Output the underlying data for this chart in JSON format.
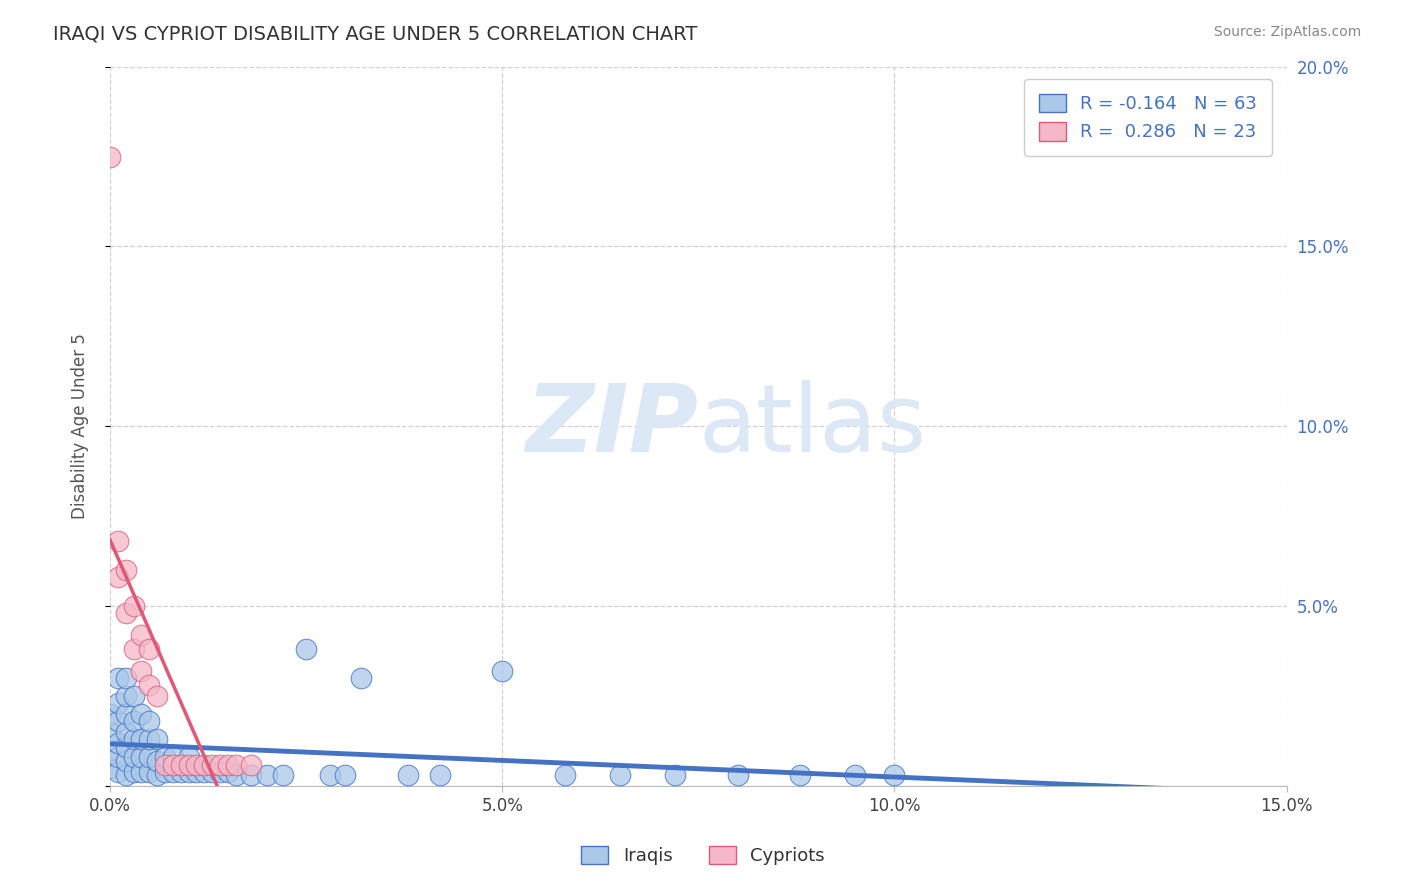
{
  "title": "IRAQI VS CYPRIOT DISABILITY AGE UNDER 5 CORRELATION CHART",
  "source": "Source: ZipAtlas.com",
  "ylabel": "Disability Age Under 5",
  "xlim": [
    0.0,
    0.15
  ],
  "ylim": [
    0.0,
    0.2
  ],
  "xtick_vals": [
    0.0,
    0.05,
    0.1,
    0.15
  ],
  "ytick_vals": [
    0.0,
    0.05,
    0.1,
    0.15,
    0.2
  ],
  "xtick_labels": [
    "0.0%",
    "5.0%",
    "10.0%",
    "15.0%"
  ],
  "ytick_labels_right": [
    "",
    "5.0%",
    "10.0%",
    "15.0%",
    "20.0%"
  ],
  "legend_iraqi": "R = -0.164   N = 63",
  "legend_cypriot": "R =  0.286   N = 23",
  "color_iraqi": "#aac8e8",
  "color_iraqi_line": "#4472c4",
  "color_cypriot": "#f4b8c8",
  "color_cypriot_line": "#e05878",
  "watermark_zip": "ZIP",
  "watermark_atlas": "atlas",
  "watermark_color": "#dce8f5",
  "background_color": "#ffffff",
  "grid_color": "#cccccc",
  "iraqi_x": [
    0.0,
    0.0,
    0.0,
    0.0,
    0.001,
    0.001,
    0.001,
    0.001,
    0.001,
    0.001,
    0.002,
    0.002,
    0.002,
    0.002,
    0.002,
    0.002,
    0.002,
    0.003,
    0.003,
    0.003,
    0.003,
    0.003,
    0.004,
    0.004,
    0.004,
    0.004,
    0.005,
    0.005,
    0.005,
    0.005,
    0.006,
    0.006,
    0.006,
    0.007,
    0.007,
    0.008,
    0.008,
    0.009,
    0.01,
    0.01,
    0.011,
    0.012,
    0.013,
    0.014,
    0.015,
    0.016,
    0.018,
    0.02,
    0.022,
    0.025,
    0.028,
    0.03,
    0.032,
    0.038,
    0.042,
    0.05,
    0.058,
    0.065,
    0.072,
    0.08,
    0.088,
    0.095,
    0.1
  ],
  "iraqi_y": [
    0.005,
    0.01,
    0.015,
    0.02,
    0.004,
    0.008,
    0.012,
    0.018,
    0.023,
    0.03,
    0.003,
    0.007,
    0.011,
    0.015,
    0.02,
    0.025,
    0.03,
    0.004,
    0.008,
    0.013,
    0.018,
    0.025,
    0.004,
    0.008,
    0.013,
    0.02,
    0.004,
    0.008,
    0.013,
    0.018,
    0.003,
    0.007,
    0.013,
    0.004,
    0.008,
    0.004,
    0.008,
    0.004,
    0.004,
    0.008,
    0.004,
    0.004,
    0.004,
    0.004,
    0.004,
    0.003,
    0.003,
    0.003,
    0.003,
    0.038,
    0.003,
    0.003,
    0.03,
    0.003,
    0.003,
    0.032,
    0.003,
    0.003,
    0.003,
    0.003,
    0.003,
    0.003,
    0.003
  ],
  "cypriot_x": [
    0.0,
    0.001,
    0.001,
    0.002,
    0.002,
    0.003,
    0.003,
    0.004,
    0.004,
    0.005,
    0.005,
    0.006,
    0.007,
    0.008,
    0.009,
    0.01,
    0.011,
    0.012,
    0.013,
    0.014,
    0.015,
    0.016,
    0.018
  ],
  "cypriot_y": [
    0.175,
    0.058,
    0.068,
    0.048,
    0.06,
    0.038,
    0.05,
    0.032,
    0.042,
    0.028,
    0.038,
    0.025,
    0.006,
    0.006,
    0.006,
    0.006,
    0.006,
    0.006,
    0.006,
    0.006,
    0.006,
    0.006,
    0.006
  ]
}
